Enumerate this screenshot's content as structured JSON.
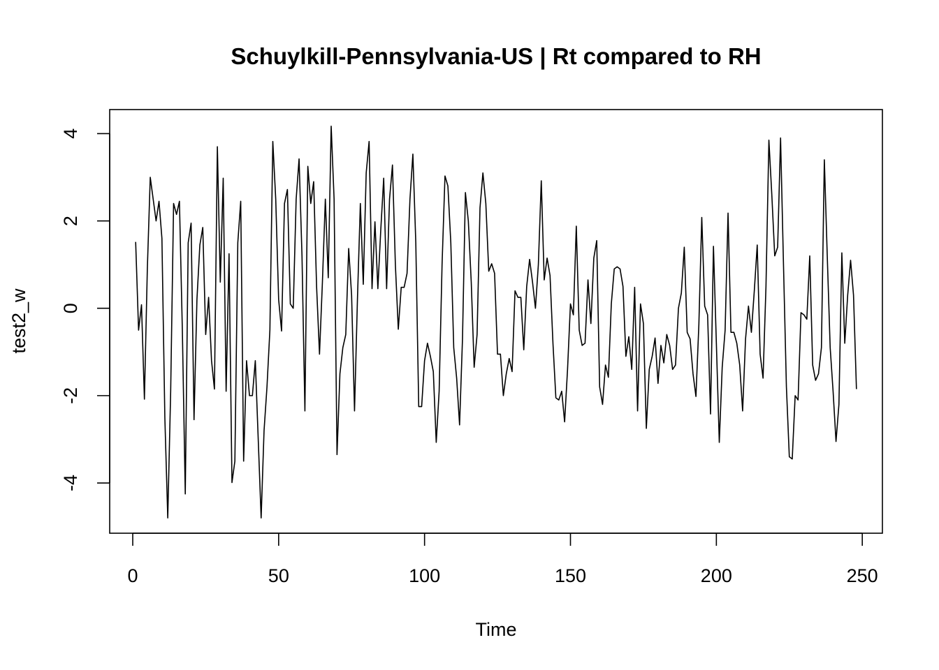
{
  "chart_data": {
    "type": "line",
    "title": "Schuylkill-Pennsylvania-US | Rt compared to RH",
    "xlabel": "Time",
    "ylabel": "test2_w",
    "xlim": [
      -7.9,
      256.9
    ],
    "ylim": [
      -5.15,
      4.55
    ],
    "x_ticks": [
      0,
      50,
      100,
      150,
      200,
      250
    ],
    "x_tick_labels": [
      "0",
      "50",
      "100",
      "150",
      "200",
      "250"
    ],
    "y_ticks": [
      -4,
      -2,
      0,
      2,
      4
    ],
    "y_tick_labels": [
      "-4",
      "-2",
      "0",
      "2",
      "4"
    ],
    "grid": false,
    "line_color": "#000000",
    "series": [
      {
        "x_start": 1,
        "x_step": 1,
        "values": [
          1.52,
          -0.5,
          0.08,
          -2.08,
          0.9,
          3.0,
          2.5,
          2.0,
          2.45,
          1.6,
          -2.5,
          -4.8,
          -1.9,
          2.4,
          2.15,
          2.45,
          -0.5,
          -4.25,
          1.5,
          1.95,
          -2.55,
          0.2,
          1.45,
          1.85,
          -0.6,
          0.25,
          -1.2,
          -1.85,
          3.7,
          0.6,
          2.98,
          -1.9,
          1.25,
          -3.99,
          -3.5,
          1.5,
          2.45,
          -3.5,
          -1.2,
          -2.0,
          -2.0,
          -1.2,
          -3.0,
          -4.8,
          -2.8,
          -1.8,
          -0.5,
          3.82,
          2.5,
          0.2,
          -0.52,
          2.4,
          2.72,
          0.1,
          0.0,
          2.5,
          3.42,
          1.2,
          -2.35,
          3.25,
          2.4,
          2.9,
          0.5,
          -1.05,
          0.6,
          2.5,
          0.7,
          4.17,
          2.5,
          -3.35,
          -1.5,
          -0.9,
          -0.6,
          1.37,
          0.3,
          -2.35,
          0.2,
          2.4,
          0.55,
          3.1,
          3.82,
          0.45,
          1.98,
          0.45,
          1.8,
          2.98,
          0.45,
          2.5,
          3.28,
          1.0,
          -0.48,
          0.48,
          0.48,
          0.8,
          2.5,
          3.53,
          1.5,
          -2.25,
          -2.25,
          -1.2,
          -0.8,
          -1.1,
          -1.45,
          -3.07,
          -1.9,
          1.0,
          3.03,
          2.8,
          1.5,
          -0.9,
          -1.6,
          -2.67,
          -0.7,
          2.65,
          2.0,
          0.6,
          -1.35,
          -0.6,
          2.3,
          3.1,
          2.4,
          0.85,
          1.02,
          0.8,
          -1.05,
          -1.05,
          -2.0,
          -1.5,
          -1.15,
          -1.45,
          0.4,
          0.25,
          0.25,
          -0.95,
          0.5,
          1.12,
          0.6,
          0.0,
          1.0,
          2.92,
          0.65,
          1.15,
          0.75,
          -0.8,
          -2.05,
          -2.1,
          -1.9,
          -2.6,
          -1.4,
          0.1,
          -0.15,
          1.88,
          -0.5,
          -0.85,
          -0.8,
          0.65,
          -0.35,
          1.15,
          1.55,
          -1.8,
          -2.2,
          -1.3,
          -1.58,
          0.1,
          0.9,
          0.95,
          0.9,
          0.5,
          -1.1,
          -0.65,
          -1.4,
          0.48,
          -2.35,
          0.1,
          -0.35,
          -2.75,
          -1.4,
          -1.1,
          -0.68,
          -1.72,
          -0.85,
          -1.25,
          -0.6,
          -0.85,
          -1.4,
          -1.3,
          0.0,
          0.35,
          1.4,
          -0.55,
          -0.7,
          -1.5,
          -2.02,
          -0.38,
          2.08,
          0.05,
          -0.15,
          -2.42,
          1.42,
          -0.8,
          -3.07,
          -1.35,
          -0.5,
          2.18,
          -0.55,
          -0.55,
          -0.8,
          -1.3,
          -2.35,
          -0.7,
          0.05,
          -0.55,
          0.4,
          1.45,
          -1.05,
          -1.6,
          0.5,
          3.85,
          2.6,
          1.2,
          1.4,
          3.9,
          1.0,
          -1.8,
          -3.4,
          -3.45,
          -2.0,
          -2.1,
          -0.1,
          -0.15,
          -0.25,
          1.2,
          -1.3,
          -1.65,
          -1.5,
          -0.9,
          3.4,
          1.2,
          -0.9,
          -1.9,
          -3.05,
          -2.2,
          1.27,
          -0.8,
          0.3,
          1.1,
          0.3,
          -1.85
        ]
      }
    ]
  }
}
